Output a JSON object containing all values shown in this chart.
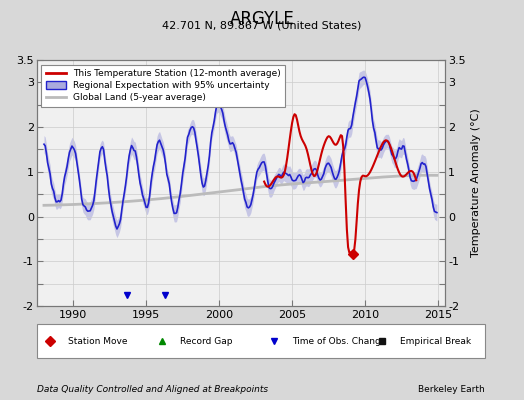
{
  "title": "ARGYLE",
  "subtitle": "42.701 N, 89.867 W (United States)",
  "ylabel": "Temperature Anomaly (°C)",
  "footer_left": "Data Quality Controlled and Aligned at Breakpoints",
  "footer_right": "Berkeley Earth",
  "xlim": [
    1987.5,
    2015.5
  ],
  "ylim": [
    -2.0,
    3.5
  ],
  "yticks": [
    -2,
    -1.5,
    -1,
    -0.5,
    0,
    0.5,
    1,
    1.5,
    2,
    2.5,
    3,
    3.5
  ],
  "xticks": [
    1990,
    1995,
    2000,
    2005,
    2010,
    2015
  ],
  "bg_color": "#d8d8d8",
  "plot_bg_color": "#f0f0f0",
  "regional_color": "#2222cc",
  "regional_fill_color": "#aaaadd",
  "station_color": "#cc0000",
  "global_color": "#bbbbbb",
  "obs_change_times": [
    1993.7,
    1996.3
  ],
  "station_move_time": 2009.2,
  "marker_legend": [
    {
      "label": "Station Move",
      "marker": "D",
      "color": "#cc0000"
    },
    {
      "label": "Record Gap",
      "marker": "^",
      "color": "#008800"
    },
    {
      "label": "Time of Obs. Change",
      "marker": "v",
      "color": "#0000cc"
    },
    {
      "label": "Empirical Break",
      "marker": "s",
      "color": "#111111"
    }
  ]
}
